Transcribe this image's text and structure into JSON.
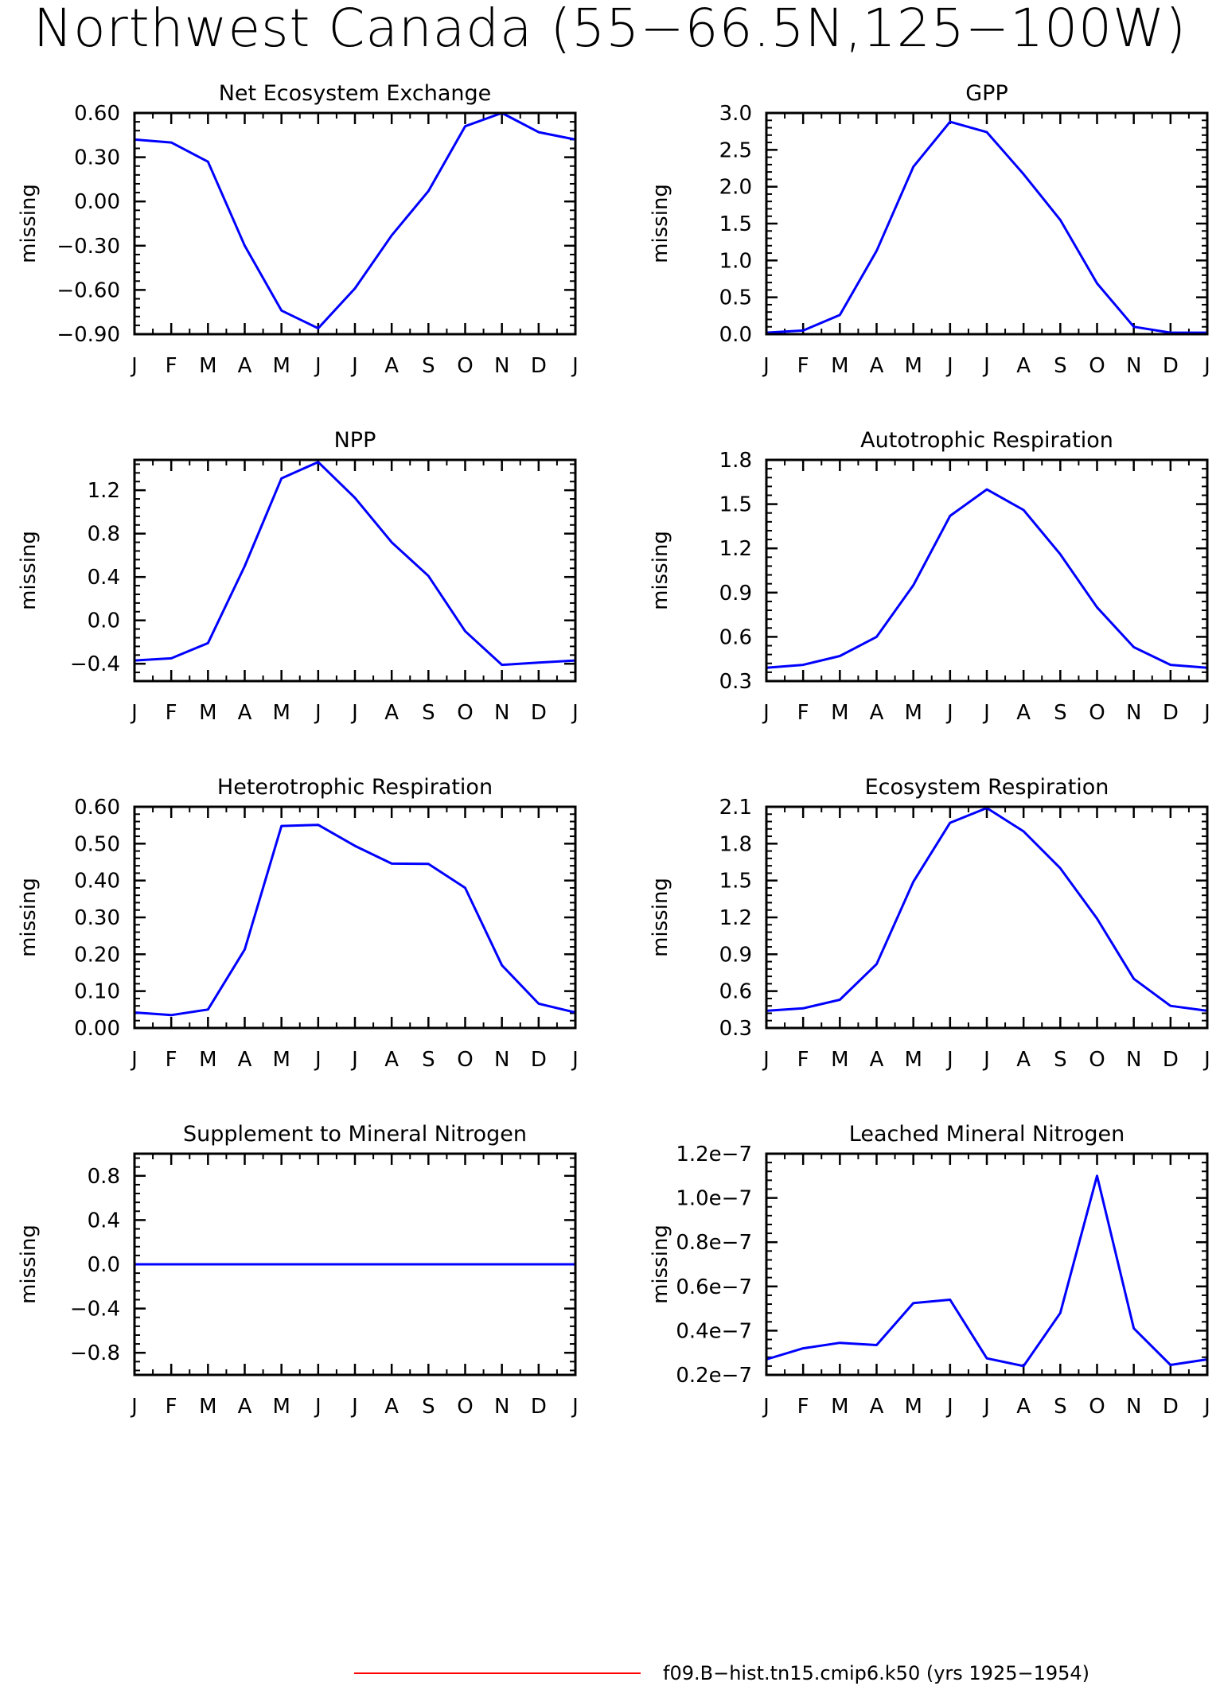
{
  "page": {
    "title": "Northwest Canada (55−66.5N,125−100W)",
    "legend_label": "f09.B−hist.tn15.cmip6.k50 (yrs 1925−1954)",
    "line_color": "#0000ff",
    "legend_color": "#ff0000"
  },
  "chart_data": [
    {
      "type": "line",
      "title": "Net Ecosystem Exchange",
      "ylabel": "missing",
      "categories": [
        "J",
        "F",
        "M",
        "A",
        "M",
        "J",
        "J",
        "A",
        "S",
        "O",
        "N",
        "D",
        "J"
      ],
      "values": [
        0.42,
        0.4,
        0.27,
        -0.3,
        -0.74,
        -0.86,
        -0.59,
        -0.23,
        0.07,
        0.51,
        0.6,
        0.47,
        0.42
      ],
      "ylim": [
        -0.9,
        0.6
      ],
      "yticks": [
        -0.9,
        -0.6,
        -0.3,
        0.0,
        0.3,
        0.6
      ],
      "ytick_labels": [
        "−0.90",
        "−0.60",
        "−0.30",
        "0.00",
        "0.30",
        "0.60"
      ]
    },
    {
      "type": "line",
      "title": "GPP",
      "ylabel": "missing",
      "categories": [
        "J",
        "F",
        "M",
        "A",
        "M",
        "J",
        "J",
        "A",
        "S",
        "O",
        "N",
        "D",
        "J"
      ],
      "values": [
        0.02,
        0.05,
        0.26,
        1.13,
        2.27,
        2.88,
        2.74,
        2.17,
        1.55,
        0.69,
        0.1,
        0.02,
        0.02
      ],
      "ylim": [
        0.0,
        3.0
      ],
      "yticks": [
        0.0,
        0.5,
        1.0,
        1.5,
        2.0,
        2.5,
        3.0
      ],
      "ytick_labels": [
        "0.0",
        "0.5",
        "1.0",
        "1.5",
        "2.0",
        "2.5",
        "3.0"
      ]
    },
    {
      "type": "line",
      "title": "NPP",
      "ylabel": "missing",
      "categories": [
        "J",
        "F",
        "M",
        "A",
        "M",
        "J",
        "J",
        "A",
        "S",
        "O",
        "N",
        "D",
        "J"
      ],
      "values": [
        -0.37,
        -0.35,
        -0.21,
        0.5,
        1.31,
        1.46,
        1.13,
        0.72,
        0.41,
        -0.1,
        -0.41,
        -0.39,
        -0.37
      ],
      "ylim": [
        -0.56,
        1.48
      ],
      "yticks": [
        -0.4,
        0.0,
        0.4,
        0.8,
        1.2
      ],
      "ytick_labels": [
        "−0.4",
        "0.0",
        "0.4",
        "0.8",
        "1.2"
      ]
    },
    {
      "type": "line",
      "title": "Autotrophic Respiration",
      "ylabel": "missing",
      "categories": [
        "J",
        "F",
        "M",
        "A",
        "M",
        "J",
        "J",
        "A",
        "S",
        "O",
        "N",
        "D",
        "J"
      ],
      "values": [
        0.39,
        0.41,
        0.47,
        0.6,
        0.95,
        1.42,
        1.6,
        1.46,
        1.16,
        0.8,
        0.53,
        0.41,
        0.39
      ],
      "ylim": [
        0.3,
        1.8
      ],
      "yticks": [
        0.3,
        0.6,
        0.9,
        1.2,
        1.5,
        1.8
      ],
      "ytick_labels": [
        "0.3",
        "0.6",
        "0.9",
        "1.2",
        "1.5",
        "1.8"
      ]
    },
    {
      "type": "line",
      "title": "Heterotrophic Respiration",
      "ylabel": "missing",
      "categories": [
        "J",
        "F",
        "M",
        "A",
        "M",
        "J",
        "J",
        "A",
        "S",
        "O",
        "N",
        "D",
        "J"
      ],
      "values": [
        0.042,
        0.035,
        0.05,
        0.213,
        0.548,
        0.551,
        0.494,
        0.446,
        0.445,
        0.38,
        0.17,
        0.066,
        0.042
      ],
      "ylim": [
        0.0,
        0.6
      ],
      "yticks": [
        0.0,
        0.1,
        0.2,
        0.3,
        0.4,
        0.5,
        0.6
      ],
      "ytick_labels": [
        "0.00",
        "0.10",
        "0.20",
        "0.30",
        "0.40",
        "0.50",
        "0.60"
      ]
    },
    {
      "type": "line",
      "title": "Ecosystem Respiration",
      "ylabel": "missing",
      "categories": [
        "J",
        "F",
        "M",
        "A",
        "M",
        "J",
        "J",
        "A",
        "S",
        "O",
        "N",
        "D",
        "J"
      ],
      "values": [
        0.44,
        0.46,
        0.53,
        0.82,
        1.49,
        1.97,
        2.09,
        1.9,
        1.6,
        1.19,
        0.7,
        0.48,
        0.44
      ],
      "ylim": [
        0.3,
        2.1
      ],
      "yticks": [
        0.3,
        0.6,
        0.9,
        1.2,
        1.5,
        1.8,
        2.1
      ],
      "ytick_labels": [
        "0.3",
        "0.6",
        "0.9",
        "1.2",
        "1.5",
        "1.8",
        "2.1"
      ]
    },
    {
      "type": "line",
      "title": "Supplement to Mineral Nitrogen",
      "ylabel": "missing",
      "categories": [
        "J",
        "F",
        "M",
        "A",
        "M",
        "J",
        "J",
        "A",
        "S",
        "O",
        "N",
        "D",
        "J"
      ],
      "values": [
        0,
        0,
        0,
        0,
        0,
        0,
        0,
        0,
        0,
        0,
        0,
        0,
        0
      ],
      "ylim": [
        -1.0,
        1.0
      ],
      "yticks": [
        -0.8,
        -0.4,
        0.0,
        0.4,
        0.8
      ],
      "ytick_labels": [
        "−0.8",
        "−0.4",
        "0.0",
        "0.4",
        "0.8"
      ]
    },
    {
      "type": "line",
      "title": "Leached Mineral Nitrogen",
      "ylabel": "missing",
      "categories": [
        "J",
        "F",
        "M",
        "A",
        "M",
        "J",
        "J",
        "A",
        "S",
        "O",
        "N",
        "D",
        "J"
      ],
      "values": [
        2.7e-08,
        3.2e-08,
        3.45e-08,
        3.35e-08,
        5.25e-08,
        5.4e-08,
        2.75e-08,
        2.4e-08,
        4.8e-08,
        1.1e-07,
        4.1e-08,
        2.45e-08,
        2.7e-08
      ],
      "ylim": [
        2e-08,
        1.2e-07
      ],
      "yticks": [
        2e-08,
        4e-08,
        6e-08,
        8e-08,
        1e-07,
        1.2e-07
      ],
      "ytick_labels": [
        "0.2e−7",
        "0.4e−7",
        "0.6e−7",
        "0.8e−7",
        "1.0e−7",
        "1.2e−7"
      ]
    }
  ]
}
